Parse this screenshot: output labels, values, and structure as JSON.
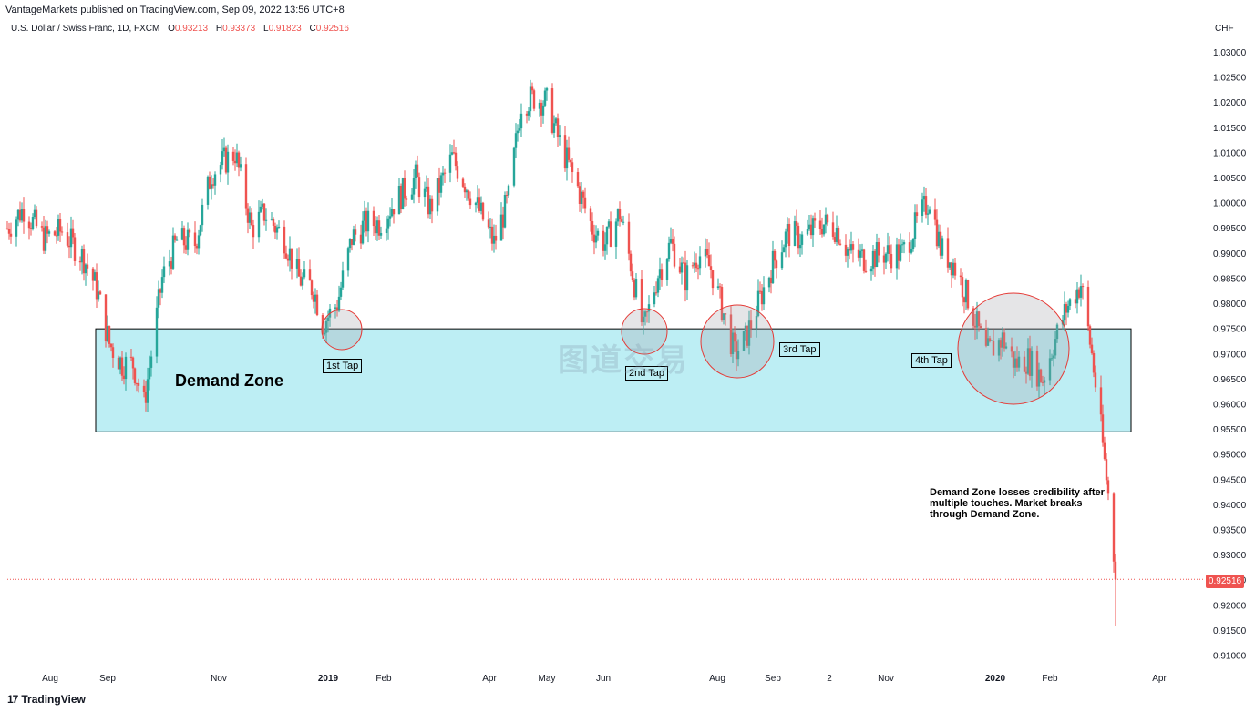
{
  "header": {
    "published": "VantageMarkets published on TradingView.com, Sep 09, 2022 13:56 UTC+8",
    "symbol": "U.S. Dollar / Swiss Franc, 1D, FXCM",
    "o_label": "O",
    "o_value": "0.93213",
    "h_label": "H",
    "h_value": "0.93373",
    "l_label": "L",
    "l_value": "0.91823",
    "c_label": "C",
    "c_value": "0.92516"
  },
  "axis": {
    "unit": "CHF",
    "current_price": "0.92516"
  },
  "annotations": {
    "zone_title": "Demand Zone",
    "tap1": "1st Tap",
    "tap2": "2nd Tap",
    "tap3": "3rd Tap",
    "tap4": "4th Tap",
    "note": "Demand Zone losses credibility after multiple touches. Market breaks through Demand Zone.",
    "watermark": "图道交易"
  },
  "footer": {
    "brand": "TradingView",
    "brand_mark": "17"
  },
  "colors": {
    "up": "#26a69a",
    "down": "#ef5350",
    "zone_fill": "#b2ebf2",
    "zone_border": "#000000",
    "circle": "#e53935"
  },
  "chart_data": {
    "type": "candlestick",
    "title": "U.S. Dollar / Swiss Franc, 1D, FXCM",
    "ylabel": "CHF",
    "ylim": [
      0.906,
      1.034
    ],
    "y_ticks": [
      "1.03000",
      "1.02500",
      "1.02000",
      "1.01500",
      "1.01000",
      "1.00500",
      "1.00000",
      "0.99500",
      "0.99000",
      "0.98500",
      "0.98000",
      "0.97500",
      "0.97000",
      "0.96500",
      "0.96000",
      "0.95500",
      "0.95000",
      "0.94500",
      "0.94000",
      "0.93500",
      "0.93000",
      "0.92500",
      "0.92000",
      "0.91500",
      "0.91000"
    ],
    "x_ticks": [
      "Aug",
      "Sep",
      "Nov",
      "2019",
      "Feb",
      "Apr",
      "May",
      "Jun",
      "Aug",
      "Sep",
      "2",
      "Nov",
      "2020",
      "Feb",
      "Apr"
    ],
    "bold_x_ticks": [
      "2019",
      "2020"
    ],
    "demand_zone": {
      "low": 0.9545,
      "high": 0.975,
      "label": "Demand Zone"
    },
    "taps": [
      {
        "label": "1st Tap",
        "date": "2018-12-31",
        "price": 0.9747
      },
      {
        "label": "2nd Tap",
        "date": "2019-06-25",
        "price": 0.9745
      },
      {
        "label": "3rd Tap",
        "date": "2019-08-20",
        "price": 0.9725
      },
      {
        "label": "4th Tap",
        "date": "2020-01-08",
        "price": 0.9695
      }
    ],
    "last_close": 0.92516,
    "series": [
      {
        "values": [
          [
            "2018-07-11",
            0.995
          ],
          [
            "2018-07-20",
            0.999
          ],
          [
            "2018-07-31",
            0.993
          ],
          [
            "2018-08-10",
            0.9945
          ],
          [
            "2018-08-22",
            0.989
          ],
          [
            "2018-08-29",
            0.983
          ],
          [
            "2018-09-05",
            0.972
          ],
          [
            "2018-09-12",
            0.968
          ],
          [
            "2018-09-18",
            0.968
          ],
          [
            "2018-09-24",
            0.96
          ],
          [
            "2018-09-28",
            0.97
          ],
          [
            "2018-10-04",
            0.985
          ],
          [
            "2018-10-12",
            0.9925
          ],
          [
            "2018-10-22",
            0.992
          ],
          [
            "2018-10-31",
            1.006
          ],
          [
            "2018-11-06",
            1.008
          ],
          [
            "2018-11-13",
            1.01
          ],
          [
            "2018-11-22",
            0.995
          ],
          [
            "2018-11-29",
            0.998
          ],
          [
            "2018-12-10",
            0.993
          ],
          [
            "2018-12-18",
            0.985
          ],
          [
            "2018-12-26",
            0.983
          ],
          [
            "2018-12-31",
            0.976
          ],
          [
            "2019-01-08",
            0.98
          ],
          [
            "2019-01-16",
            0.993
          ],
          [
            "2019-01-24",
            0.996
          ],
          [
            "2019-01-31",
            0.996
          ],
          [
            "2019-02-08",
            1.0
          ],
          [
            "2019-02-20",
            1.005
          ],
          [
            "2019-02-28",
            0.999
          ],
          [
            "2019-03-12",
            1.009
          ],
          [
            "2019-03-25",
            1.0
          ],
          [
            "2019-04-04",
            0.992
          ],
          [
            "2019-04-12",
            1.001
          ],
          [
            "2019-04-19",
            1.02
          ],
          [
            "2019-04-26",
            1.021
          ],
          [
            "2019-05-03",
            1.02
          ],
          [
            "2019-05-10",
            1.012
          ],
          [
            "2019-05-20",
            1.003
          ],
          [
            "2019-05-28",
            0.995
          ],
          [
            "2019-06-04",
            0.992
          ],
          [
            "2019-06-12",
            0.998
          ],
          [
            "2019-06-18",
            0.988
          ],
          [
            "2019-06-25",
            0.9745
          ],
          [
            "2019-07-03",
            0.986
          ],
          [
            "2019-07-10",
            0.992
          ],
          [
            "2019-07-18",
            0.985
          ],
          [
            "2019-07-25",
            0.99
          ],
          [
            "2019-08-01",
            0.987
          ],
          [
            "2019-08-08",
            0.978
          ],
          [
            "2019-08-14",
            0.97
          ],
          [
            "2019-08-20",
            0.973
          ],
          [
            "2019-08-27",
            0.98
          ],
          [
            "2019-09-04",
            0.988
          ],
          [
            "2019-09-12",
            0.994
          ],
          [
            "2019-09-20",
            0.993
          ],
          [
            "2019-10-01",
            0.996
          ],
          [
            "2019-10-09",
            0.995
          ],
          [
            "2019-10-16",
            0.99
          ],
          [
            "2019-10-24",
            0.989
          ],
          [
            "2019-11-04",
            0.99
          ],
          [
            "2019-11-14",
            0.99
          ],
          [
            "2019-11-22",
            0.996
          ],
          [
            "2019-11-29",
            1.001
          ],
          [
            "2019-12-05",
            0.991
          ],
          [
            "2019-12-12",
            0.988
          ],
          [
            "2019-12-20",
            0.981
          ],
          [
            "2019-12-30",
            0.97
          ],
          [
            "2020-01-08",
            0.973
          ],
          [
            "2020-01-15",
            0.968
          ],
          [
            "2020-01-22",
            0.969
          ],
          [
            "2020-01-30",
            0.965
          ],
          [
            "2020-02-05",
            0.972
          ],
          [
            "2020-02-12",
            0.979
          ],
          [
            "2020-02-20",
            0.984
          ],
          [
            "2020-02-26",
            0.97
          ],
          [
            "2020-03-02",
            0.955
          ],
          [
            "2020-03-06",
            0.942
          ],
          [
            "2020-03-09",
            0.93
          ],
          [
            "2020-03-10",
            0.92516
          ]
        ]
      }
    ]
  }
}
